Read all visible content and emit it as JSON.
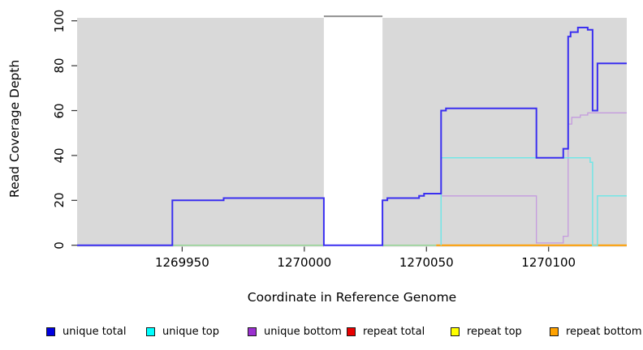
{
  "axes": {
    "x_label": "Coordinate in Reference Genome",
    "y_label": "Read Coverage Depth",
    "x_ticks": [
      1269950,
      1270000,
      1270050,
      1270100
    ],
    "y_ticks": [
      0,
      20,
      40,
      60,
      80,
      100
    ],
    "xlim": [
      1269907,
      1270132
    ],
    "ylim": [
      0,
      100
    ]
  },
  "panel": {
    "background": "#d9d9d9"
  },
  "masked_region": {
    "x_start": 1270008,
    "x_end": 1270032,
    "fill": "#ffffff",
    "cap_value": 102,
    "cap_color": "#8f8f8f"
  },
  "chart_data": {
    "type": "line",
    "step": true,
    "grid": false,
    "legend_position": "bottom",
    "x_axis_range": [
      1269907,
      1270132
    ],
    "y_axis_range": [
      0,
      100
    ],
    "series": [
      {
        "name": "zero-overlap-line",
        "in_legend": false,
        "color": "#8ed48e",
        "width": 1.3,
        "segments": [
          [
            [
              1269946,
              0
            ],
            [
              1270008,
              0
            ]
          ],
          [
            [
              1270032,
              0
            ],
            [
              1270054,
              0
            ]
          ]
        ]
      },
      {
        "name": "repeat bottom",
        "in_legend": true,
        "color": "#ff9e00",
        "legend_color": "#ffa200",
        "width": 2,
        "segments": [
          [
            [
              1270054,
              0
            ],
            [
              1270132,
              0
            ]
          ]
        ]
      },
      {
        "name": "unique bottom",
        "in_legend": true,
        "color": "#c49ade",
        "legend_color": "#9b30d0",
        "width": 1.3,
        "segments": [
          [
            [
              1270056,
              0
            ],
            [
              1270056,
              22
            ],
            [
              1270095,
              22
            ],
            [
              1270095,
              1
            ],
            [
              1270106,
              1
            ],
            [
              1270106,
              4
            ],
            [
              1270108,
              4
            ],
            [
              1270108,
              54
            ],
            [
              1270109.5,
              54
            ],
            [
              1270109.5,
              57
            ],
            [
              1270113,
              57
            ],
            [
              1270113,
              58
            ],
            [
              1270116,
              58
            ],
            [
              1270116,
              59
            ],
            [
              1270132,
              59
            ]
          ]
        ]
      },
      {
        "name": "unique top",
        "in_legend": true,
        "color": "#72e6e6",
        "legend_color": "#00ffff",
        "width": 1.5,
        "segments": [
          [
            [
              1270056,
              0
            ],
            [
              1270056,
              39
            ],
            [
              1270117,
              39
            ],
            [
              1270117,
              37
            ],
            [
              1270118,
              37
            ],
            [
              1270118,
              0
            ],
            [
              1270120,
              0
            ],
            [
              1270120,
              22
            ],
            [
              1270132,
              22
            ]
          ]
        ]
      },
      {
        "name": "unique total",
        "in_legend": true,
        "color": "#3a2ff0",
        "legend_color": "#0000e0",
        "width": 2,
        "segments": [
          [
            [
              1269907,
              0
            ],
            [
              1269946,
              0
            ],
            [
              1269946,
              20
            ],
            [
              1269967,
              20
            ],
            [
              1269967,
              21
            ],
            [
              1270008,
              21
            ],
            [
              1270008,
              0
            ],
            [
              1270032,
              0
            ],
            [
              1270032,
              20
            ],
            [
              1270034,
              20
            ],
            [
              1270034,
              21
            ],
            [
              1270047,
              21
            ],
            [
              1270047,
              22
            ],
            [
              1270049,
              22
            ],
            [
              1270049,
              23
            ],
            [
              1270056,
              23
            ],
            [
              1270056,
              60
            ],
            [
              1270058,
              60
            ],
            [
              1270058,
              61
            ],
            [
              1270095,
              61
            ],
            [
              1270095,
              39
            ],
            [
              1270106,
              39
            ],
            [
              1270106,
              43
            ],
            [
              1270108,
              43
            ],
            [
              1270108,
              93
            ],
            [
              1270109,
              93
            ],
            [
              1270109,
              95
            ],
            [
              1270112,
              95
            ],
            [
              1270112,
              97
            ],
            [
              1270116,
              97
            ],
            [
              1270116,
              96
            ],
            [
              1270118,
              96
            ],
            [
              1270118,
              60
            ],
            [
              1270120,
              60
            ],
            [
              1270120,
              81
            ],
            [
              1270132,
              81
            ]
          ]
        ]
      },
      {
        "name": "repeat total",
        "in_legend": true,
        "color": "#e80000",
        "legend_color": "#e80000",
        "width": 1.3,
        "segments": []
      },
      {
        "name": "repeat top",
        "in_legend": true,
        "color": "#ffff00",
        "legend_color": "#ffff00",
        "width": 1.3,
        "segments": []
      }
    ]
  },
  "legend": {
    "items": [
      {
        "label": "unique total",
        "color": "#0000e0"
      },
      {
        "label": "unique top",
        "color": "#00ffff"
      },
      {
        "label": "unique bottom",
        "color": "#9b30d0"
      },
      {
        "label": "repeat total",
        "color": "#e80000"
      },
      {
        "label": "repeat top",
        "color": "#ffff00"
      },
      {
        "label": "repeat bottom",
        "color": "#ffa200"
      }
    ]
  }
}
